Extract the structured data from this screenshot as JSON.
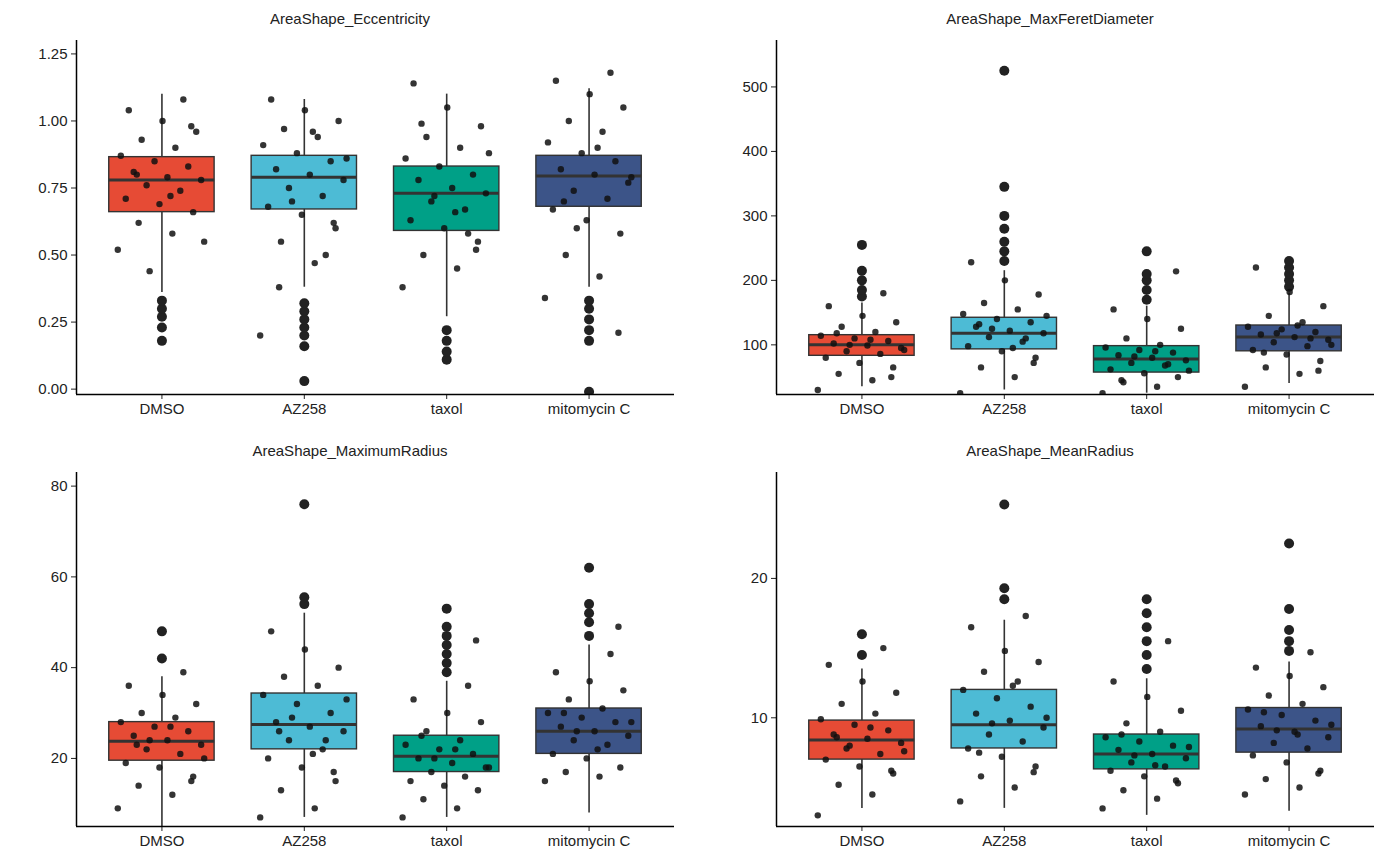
{
  "chart_data": [
    {
      "type": "box",
      "title": "AreaShape_Eccentricity",
      "categories": [
        "DMSO",
        "AZ258",
        "taxol",
        "mitomycin C"
      ],
      "colors": [
        "#E64B35",
        "#4DBBD5",
        "#00A087",
        "#3C5488"
      ],
      "ylim": [
        -0.02,
        1.3
      ],
      "yticks": [
        {
          "value": 0,
          "label": "0.00"
        },
        {
          "value": 0.25,
          "label": "0.25"
        },
        {
          "value": 0.5,
          "label": "0.50"
        },
        {
          "value": 0.75,
          "label": "0.75"
        },
        {
          "value": 1,
          "label": "1.00"
        },
        {
          "value": 1.25,
          "label": "1.25"
        }
      ],
      "q1": [
        0.66,
        0.67,
        0.59,
        0.68
      ],
      "median": [
        0.78,
        0.79,
        0.73,
        0.795
      ],
      "q3": [
        0.865,
        0.87,
        0.83,
        0.87
      ],
      "whisker_low": [
        0.36,
        0.38,
        0.27,
        0.38
      ],
      "whisker_high": [
        1.1,
        1.08,
        1.1,
        1.12
      ],
      "outliers": [
        [
          0.18,
          0.23,
          0.27,
          0.3,
          0.33
        ],
        [
          0.16,
          0.2,
          0.23,
          0.26,
          0.29,
          0.32,
          0.03
        ],
        [
          0.11,
          0.14,
          0.18,
          0.22
        ],
        [
          0.18,
          0.22,
          0.26,
          0.3,
          0.33,
          -0.01
        ]
      ],
      "points": [
        [
          0.52,
          0.58,
          0.62,
          0.66,
          0.69,
          0.71,
          0.74,
          0.76,
          0.78,
          0.79,
          0.81,
          0.83,
          0.85,
          0.87,
          0.9,
          0.93,
          0.96,
          1.0,
          1.04,
          1.08,
          0.44,
          0.55,
          0.72,
          0.8,
          0.98
        ],
        [
          0.2,
          0.47,
          0.55,
          0.6,
          0.65,
          0.68,
          0.72,
          0.75,
          0.78,
          0.8,
          0.82,
          0.85,
          0.88,
          0.91,
          0.94,
          0.97,
          1.0,
          1.04,
          1.08,
          0.5,
          0.7,
          0.86,
          0.96,
          0.38,
          0.62
        ],
        [
          0.38,
          0.45,
          0.5,
          0.55,
          0.6,
          0.63,
          0.67,
          0.7,
          0.73,
          0.75,
          0.78,
          0.8,
          0.83,
          0.86,
          0.9,
          0.94,
          0.98,
          1.05,
          1.14,
          0.58,
          0.72,
          0.88,
          0.66,
          0.99,
          0.52
        ],
        [
          0.34,
          0.42,
          0.5,
          0.58,
          0.63,
          0.67,
          0.71,
          0.74,
          0.77,
          0.8,
          0.82,
          0.85,
          0.88,
          0.92,
          0.96,
          1.0,
          1.05,
          1.1,
          1.15,
          1.18,
          0.6,
          0.79,
          0.9,
          0.7,
          0.21
        ]
      ]
    },
    {
      "type": "box",
      "title": "AreaShape_MaxFeretDiameter",
      "categories": [
        "DMSO",
        "AZ258",
        "taxol",
        "mitomycin C"
      ],
      "colors": [
        "#E64B35",
        "#4DBBD5",
        "#00A087",
        "#3C5488"
      ],
      "ylim": [
        23,
        572
      ],
      "yticks": [
        100,
        200,
        300,
        400,
        500
      ],
      "q1": [
        83,
        93,
        57,
        90
      ],
      "median": [
        100,
        118,
        78,
        112
      ],
      "q3": [
        115,
        142,
        98,
        130
      ],
      "whisker_low": [
        35,
        30,
        25,
        40
      ],
      "whisker_high": [
        165,
        215,
        160,
        180
      ],
      "outliers": [
        [
          175,
          185,
          200,
          215,
          255
        ],
        [
          230,
          245,
          260,
          280,
          300,
          345,
          525
        ],
        [
          170,
          185,
          200,
          210,
          245
        ],
        [
          190,
          200,
          210,
          220,
          230
        ]
      ],
      "points": [
        [
          30,
          45,
          55,
          65,
          72,
          80,
          86,
          90,
          95,
          99,
          102,
          106,
          110,
          114,
          120,
          128,
          135,
          145,
          160,
          180,
          100,
          92,
          108,
          118,
          50
        ],
        [
          25,
          50,
          65,
          80,
          90,
          98,
          105,
          112,
          118,
          122,
          128,
          135,
          140,
          148,
          155,
          165,
          178,
          200,
          228,
          110,
          125,
          145,
          95,
          132,
          72
        ],
        [
          25,
          35,
          42,
          50,
          56,
          62,
          68,
          72,
          76,
          80,
          84,
          88,
          92,
          96,
          100,
          110,
          125,
          140,
          155,
          70,
          82,
          60,
          90,
          45,
          214
        ],
        [
          35,
          55,
          65,
          75,
          85,
          92,
          98,
          104,
          108,
          112,
          116,
          120,
          124,
          128,
          135,
          145,
          160,
          182,
          220,
          110,
          118,
          100,
          130,
          88,
          60
        ]
      ]
    },
    {
      "type": "box",
      "title": "AreaShape_MaximumRadius",
      "categories": [
        "DMSO",
        "AZ258",
        "taxol",
        "mitomycin C"
      ],
      "colors": [
        "#E64B35",
        "#4DBBD5",
        "#00A087",
        "#3C5488"
      ],
      "ylim": [
        5,
        83
      ],
      "yticks": [
        20,
        40,
        60,
        80
      ],
      "q1": [
        19.5,
        22,
        17,
        21
      ],
      "median": [
        23.8,
        27.5,
        20.5,
        26
      ],
      "q3": [
        28,
        34.3,
        25,
        31
      ],
      "whisker_low": [
        5,
        7,
        7,
        8
      ],
      "whisker_high": [
        38,
        52,
        37,
        45
      ],
      "outliers": [
        [
          42,
          48
        ],
        [
          54,
          55.5,
          76
        ],
        [
          39,
          41,
          43,
          45,
          47,
          49,
          53
        ],
        [
          47,
          50,
          52,
          54,
          62
        ]
      ],
      "points": [
        [
          9,
          12,
          14,
          16,
          18,
          19,
          21,
          22,
          23,
          24,
          25,
          26,
          27,
          28,
          29,
          30,
          32,
          34,
          36,
          39,
          24,
          20,
          27,
          23,
          15
        ],
        [
          7,
          9,
          13,
          15,
          18,
          20,
          22,
          24,
          26,
          27,
          28,
          30,
          32,
          34,
          36,
          38,
          40,
          44,
          48,
          24,
          29,
          33,
          21,
          26,
          17
        ],
        [
          7,
          9,
          11,
          13,
          14,
          15,
          16,
          17,
          18,
          19,
          20,
          21,
          22,
          23,
          24,
          26,
          28,
          30,
          33,
          36,
          20,
          18,
          22,
          25,
          46
        ],
        [
          15,
          16,
          17,
          18,
          20,
          21,
          23,
          24,
          25,
          26,
          27,
          28,
          29,
          30,
          31,
          33,
          35,
          37,
          39,
          43,
          26,
          28,
          22,
          30,
          49
        ]
      ]
    },
    {
      "type": "box",
      "title": "AreaShape_MeanRadius",
      "categories": [
        "DMSO",
        "AZ258",
        "taxol",
        "mitomycin C"
      ],
      "colors": [
        "#E64B35",
        "#4DBBD5",
        "#00A087",
        "#3C5488"
      ],
      "ylim": [
        2.2,
        27.6
      ],
      "yticks": [
        10,
        20
      ],
      "q1": [
        7.0,
        7.8,
        6.3,
        7.5
      ],
      "median": [
        8.4,
        9.5,
        7.4,
        9.2
      ],
      "q3": [
        9.8,
        12,
        8.8,
        10.7
      ],
      "whisker_low": [
        3.5,
        3.5,
        3,
        3.3
      ],
      "whisker_high": [
        13.5,
        17,
        12.8,
        14
      ],
      "outliers": [
        [
          14.5,
          16
        ],
        [
          18.5,
          19.3,
          25.3
        ],
        [
          13.5,
          14.5,
          15.5,
          16.5,
          17.5,
          18.5
        ],
        [
          14.8,
          15.5,
          16.3,
          17.8,
          22.5
        ]
      ],
      "points": [
        [
          3,
          4.5,
          5.2,
          6,
          6.5,
          7,
          7.4,
          7.8,
          8.2,
          8.5,
          8.8,
          9.1,
          9.5,
          9.9,
          10.3,
          11,
          11.8,
          12.6,
          13.8,
          15,
          8,
          7.6,
          9.3,
          8.6,
          6.2
        ],
        [
          4,
          5,
          5.8,
          6.5,
          7.2,
          7.8,
          8.3,
          8.8,
          9.3,
          9.8,
          10.3,
          10.8,
          11.4,
          12,
          12.6,
          13.3,
          14,
          14.8,
          16.5,
          17.3,
          9.6,
          10,
          12.3,
          7.5,
          6.1
        ],
        [
          3.5,
          4.2,
          4.8,
          5.3,
          5.8,
          6.2,
          6.5,
          6.8,
          7.1,
          7.4,
          7.7,
          8,
          8.3,
          8.6,
          9,
          9.6,
          10.5,
          11.5,
          12.6,
          15.5,
          7.3,
          7.9,
          6.6,
          8.8,
          5.5
        ],
        [
          4.5,
          5,
          5.6,
          6.2,
          6.8,
          7.3,
          7.8,
          8.2,
          8.6,
          9,
          9.4,
          9.8,
          10.2,
          10.6,
          11,
          11.6,
          12.2,
          13,
          13.6,
          14.7,
          9.1,
          9.5,
          8.8,
          10.4,
          6
        ]
      ]
    }
  ]
}
